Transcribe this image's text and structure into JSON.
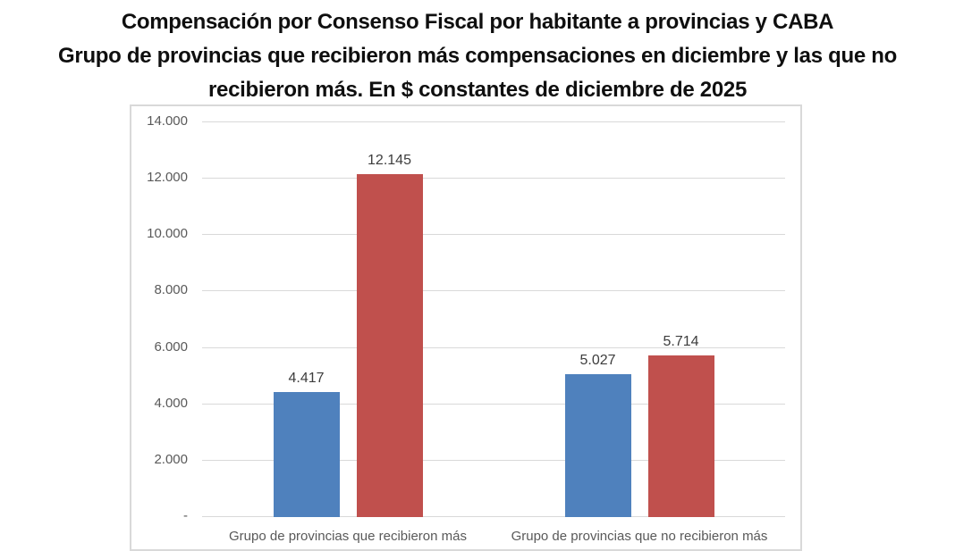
{
  "title": {
    "lines": [
      "Compensación por Consenso Fiscal por habitante a provincias y CABA",
      "Grupo de provincias que recibieron más compensaciones en diciembre y las que no",
      "recibieron más. En $ constantes de diciembre de 2025"
    ]
  },
  "chart_data": {
    "type": "bar",
    "title": "Compensación por Consenso Fiscal por habitante a provincias y CABA. Grupo de provincias que recibieron más compensaciones en diciembre y las que no recibieron más. En $ constantes de diciembre de 2025",
    "categories": [
      "Grupo de provincias que recibieron más",
      "Grupo de provincias que no recibieron más"
    ],
    "series": [
      {
        "name": "blue-series",
        "color": "#4f81bd",
        "values": [
          4417,
          5027
        ],
        "value_labels": [
          "4.417",
          "5.027"
        ]
      },
      {
        "name": "red-series",
        "color": "#c0504d",
        "values": [
          12145,
          5714
        ],
        "value_labels": [
          "12.145",
          "5.714"
        ]
      }
    ],
    "ylim": [
      0,
      14000
    ],
    "yticks": [
      {
        "value": 14000,
        "label": "14.000"
      },
      {
        "value": 12000,
        "label": "12.000"
      },
      {
        "value": 10000,
        "label": "10.000"
      },
      {
        "value": 8000,
        "label": "8.000"
      },
      {
        "value": 6000,
        "label": "6.000"
      },
      {
        "value": 4000,
        "label": "4.000"
      },
      {
        "value": 2000,
        "label": "2.000"
      },
      {
        "value": 0,
        "label": "-"
      }
    ],
    "grid": true,
    "legend": "none",
    "colors": {
      "gridline": "#d9d9d9",
      "chart_border": "#d9d9d9",
      "axis_label": "#595959",
      "data_label": "#3d3d3d",
      "title_text": "#0f0f0f"
    }
  }
}
